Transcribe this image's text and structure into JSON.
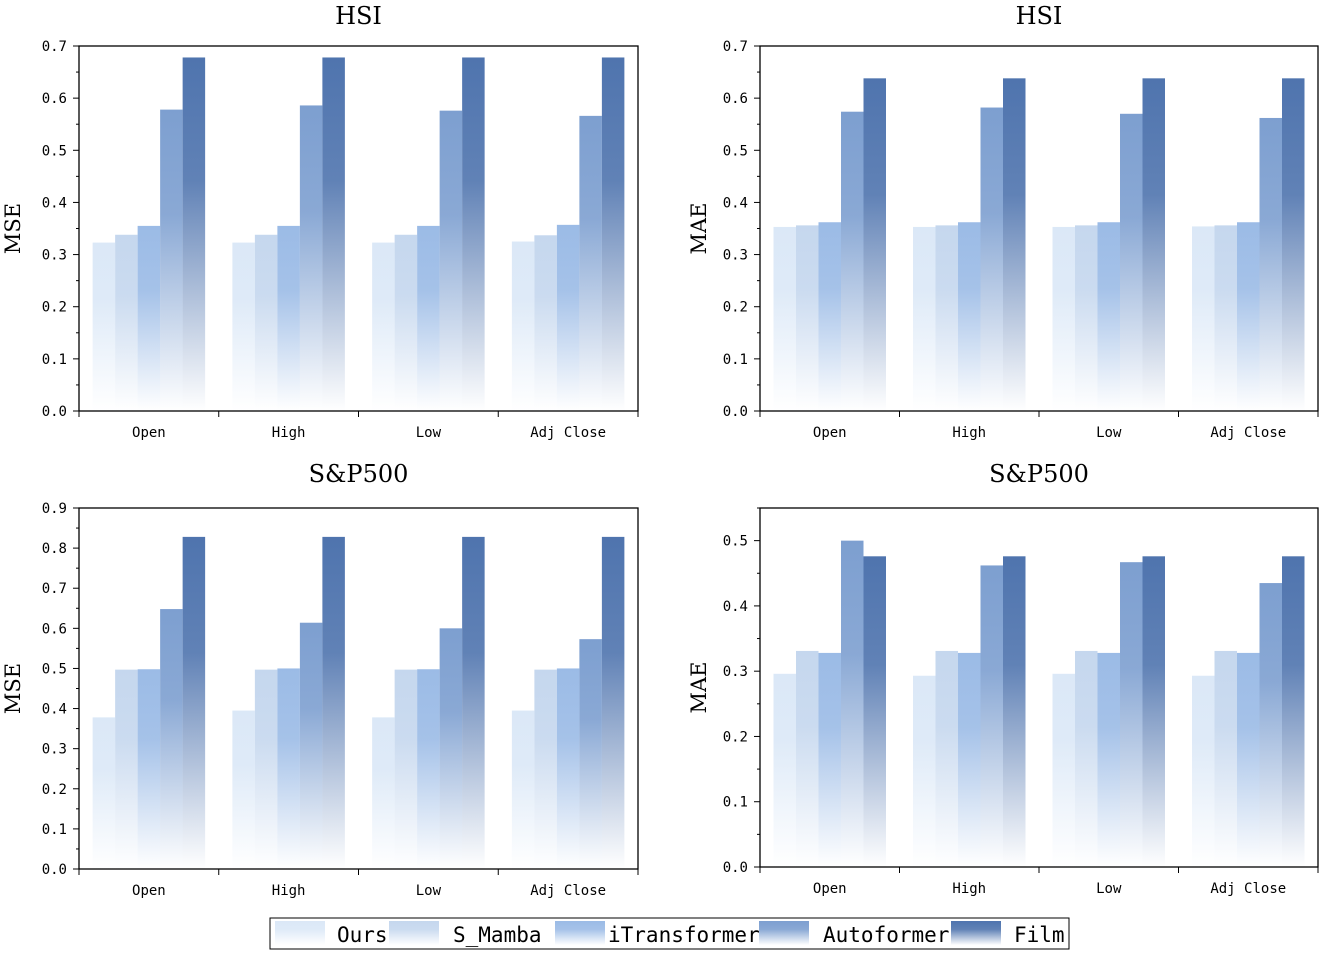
{
  "legend": {
    "entries": [
      "Ours",
      "S_Mamba",
      "iTransformer",
      "Autoformer",
      "Film"
    ],
    "colors": [
      "#dbe8f7",
      "#c5d7ee",
      "#9bbbe6",
      "#7d9fd0",
      "#4f74ae"
    ]
  },
  "chart_data": [
    {
      "type": "bar",
      "title": "HSI",
      "xlabel": "",
      "ylabel": "MSE",
      "ylim": [
        0,
        0.7
      ],
      "yticks": [
        "0.0",
        "0.1",
        "0.2",
        "0.3",
        "0.4",
        "0.5",
        "0.6",
        "0.7"
      ],
      "categories": [
        "Open",
        "High",
        "Low",
        "Adj Close"
      ],
      "series": [
        {
          "name": "Ours",
          "values": [
            0.323,
            0.323,
            0.323,
            0.325
          ]
        },
        {
          "name": "S_Mamba",
          "values": [
            0.338,
            0.338,
            0.338,
            0.337
          ]
        },
        {
          "name": "iTransformer",
          "values": [
            0.355,
            0.355,
            0.355,
            0.357
          ]
        },
        {
          "name": "Autoformer",
          "values": [
            0.578,
            0.586,
            0.576,
            0.566
          ]
        },
        {
          "name": "Film",
          "values": [
            0.678,
            0.678,
            0.678,
            0.678
          ]
        }
      ]
    },
    {
      "type": "bar",
      "title": "HSI",
      "xlabel": "",
      "ylabel": "MAE",
      "ylim": [
        0,
        0.7
      ],
      "yticks": [
        "0.0",
        "0.1",
        "0.2",
        "0.3",
        "0.4",
        "0.5",
        "0.6",
        "0.7"
      ],
      "categories": [
        "Open",
        "High",
        "Low",
        "Adj Close"
      ],
      "series": [
        {
          "name": "Ours",
          "values": [
            0.353,
            0.353,
            0.353,
            0.354
          ]
        },
        {
          "name": "S_Mamba",
          "values": [
            0.356,
            0.356,
            0.356,
            0.356
          ]
        },
        {
          "name": "iTransformer",
          "values": [
            0.362,
            0.362,
            0.362,
            0.362
          ]
        },
        {
          "name": "Autoformer",
          "values": [
            0.574,
            0.582,
            0.57,
            0.562
          ]
        },
        {
          "name": "Film",
          "values": [
            0.638,
            0.638,
            0.638,
            0.638
          ]
        }
      ]
    },
    {
      "type": "bar",
      "title": "S&P500",
      "xlabel": "",
      "ylabel": "MSE",
      "ylim": [
        0,
        0.9
      ],
      "yticks": [
        "0.0",
        "0.1",
        "0.2",
        "0.3",
        "0.4",
        "0.5",
        "0.6",
        "0.7",
        "0.8",
        "0.9"
      ],
      "categories": [
        "Open",
        "High",
        "Low",
        "Adj Close"
      ],
      "series": [
        {
          "name": "Ours",
          "values": [
            0.378,
            0.395,
            0.378,
            0.395
          ]
        },
        {
          "name": "S_Mamba",
          "values": [
            0.497,
            0.497,
            0.497,
            0.497
          ]
        },
        {
          "name": "iTransformer",
          "values": [
            0.498,
            0.5,
            0.498,
            0.5
          ]
        },
        {
          "name": "Autoformer",
          "values": [
            0.648,
            0.614,
            0.6,
            0.573
          ]
        },
        {
          "name": "Film",
          "values": [
            0.828,
            0.828,
            0.828,
            0.828
          ]
        }
      ]
    },
    {
      "type": "bar",
      "title": "S&P500",
      "xlabel": "",
      "ylabel": "MAE",
      "ylim": [
        0,
        0.55
      ],
      "yticks": [
        "0.0",
        "0.1",
        "0.2",
        "0.3",
        "0.4",
        "0.5"
      ],
      "categories": [
        "Open",
        "High",
        "Low",
        "Adj Close"
      ],
      "series": [
        {
          "name": "Ours",
          "values": [
            0.296,
            0.293,
            0.296,
            0.293
          ]
        },
        {
          "name": "S_Mamba",
          "values": [
            0.331,
            0.331,
            0.331,
            0.331
          ]
        },
        {
          "name": "iTransformer",
          "values": [
            0.328,
            0.328,
            0.328,
            0.328
          ]
        },
        {
          "name": "Autoformer",
          "values": [
            0.5,
            0.462,
            0.467,
            0.435
          ]
        },
        {
          "name": "Film",
          "values": [
            0.476,
            0.476,
            0.476,
            0.476
          ]
        }
      ]
    }
  ]
}
